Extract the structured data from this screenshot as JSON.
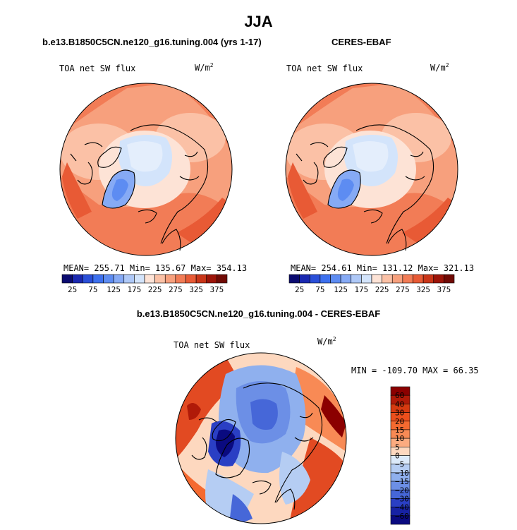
{
  "page": {
    "title": "JJA"
  },
  "chart_data": [
    {
      "type": "heatmap",
      "projection": "polar-stereographic-north",
      "title": "b.e13.B1850C5CN.ne120_g16.tuning.004 (yrs 1-17)",
      "variable_label": "TOA net SW flux",
      "units": "W/m",
      "units_exponent": "2",
      "stats_text": "MEAN= 255.71   Min= 135.67   Max= 354.13",
      "stats": {
        "mean": 255.71,
        "min": 135.67,
        "max": 354.13
      },
      "colorbar": {
        "orientation": "horizontal",
        "levels": [
          25,
          50,
          75,
          100,
          125,
          150,
          175,
          200,
          225,
          250,
          275,
          300,
          325,
          350,
          375
        ],
        "tick_labels": [
          "25",
          "75",
          "125",
          "175",
          "225",
          "275",
          "325",
          "375"
        ],
        "colors": [
          "#0b0b70",
          "#1a28b0",
          "#2a4fd8",
          "#3d70ee",
          "#5d8cf2",
          "#86aaf5",
          "#aec8f7",
          "#d3e4fb",
          "#fde3d6",
          "#fbc1a6",
          "#f7a07d",
          "#f27c56",
          "#e85a35",
          "#c93518",
          "#9c1408",
          "#700a05"
        ]
      }
    },
    {
      "type": "heatmap",
      "projection": "polar-stereographic-north",
      "title": "CERES-EBAF",
      "variable_label": "TOA net SW flux",
      "units": "W/m",
      "units_exponent": "2",
      "stats_text": "MEAN= 254.61   Min= 131.12   Max= 321.13",
      "stats": {
        "mean": 254.61,
        "min": 131.12,
        "max": 321.13
      },
      "colorbar": {
        "orientation": "horizontal",
        "levels": [
          25,
          50,
          75,
          100,
          125,
          150,
          175,
          200,
          225,
          250,
          275,
          300,
          325,
          350,
          375
        ],
        "tick_labels": [
          "25",
          "75",
          "125",
          "175",
          "225",
          "275",
          "325",
          "375"
        ],
        "colors": [
          "#0b0b70",
          "#1a28b0",
          "#2a4fd8",
          "#3d70ee",
          "#5d8cf2",
          "#86aaf5",
          "#aec8f7",
          "#d3e4fb",
          "#fde3d6",
          "#fbc1a6",
          "#f7a07d",
          "#f27c56",
          "#e85a35",
          "#c93518",
          "#9c1408",
          "#700a05"
        ]
      }
    },
    {
      "type": "heatmap",
      "projection": "polar-stereographic-north",
      "title": "b.e13.B1850C5CN.ne120_g16.tuning.004 - CERES-EBAF",
      "variable_label": "TOA net SW flux",
      "units": "W/m",
      "units_exponent": "2",
      "stats_text": "MIN = -109.70 MAX =  66.35",
      "stats": {
        "min": -109.7,
        "max": 66.35
      },
      "colorbar": {
        "orientation": "vertical",
        "levels": [
          60,
          40,
          30,
          20,
          15,
          10,
          5,
          0,
          -5,
          -10,
          -15,
          -20,
          -30,
          -40,
          -60
        ],
        "tick_labels": [
          "60",
          "40",
          "30",
          "20",
          "15",
          "10",
          "5",
          "0",
          "−5",
          "−10",
          "−15",
          "−20",
          "−30",
          "−40",
          "−60"
        ],
        "colors": [
          "#8b0000",
          "#b01a08",
          "#d63a10",
          "#ec4f1c",
          "#f56a30",
          "#f88a55",
          "#fbab80",
          "#fdd8bf",
          "#dceafa",
          "#b5cdf3",
          "#8fb0ee",
          "#6c8fe6",
          "#4667d8",
          "#2a3fc4",
          "#1722a4",
          "#0a0a80"
        ]
      }
    }
  ]
}
